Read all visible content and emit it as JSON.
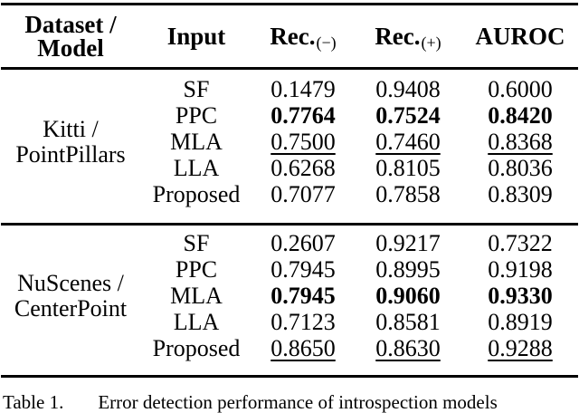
{
  "table": {
    "header": {
      "col1_line1": "Dataset /",
      "col1_line2": "Model",
      "col2": "Input",
      "rec_label": "Rec.",
      "rec_neg_sub": "(−)",
      "rec_pos_sub": "(+)",
      "col5": "AUROC"
    },
    "sections": [
      {
        "group_line1": "Kitti /",
        "group_line2": "PointPillars",
        "rows": [
          {
            "input": "SF",
            "values": [
              "0.1479",
              "0.9408",
              "0.6000"
            ],
            "emphasis": "none"
          },
          {
            "input": "PPC",
            "values": [
              "0.7764",
              "0.7524",
              "0.8420"
            ],
            "emphasis": "bold"
          },
          {
            "input": "MLA",
            "values": [
              "0.7500",
              "0.7460",
              "0.8368"
            ],
            "emphasis": "underline"
          },
          {
            "input": "LLA",
            "values": [
              "0.6268",
              "0.8105",
              "0.8036"
            ],
            "emphasis": "none"
          },
          {
            "input": "Proposed",
            "values": [
              "0.7077",
              "0.7858",
              "0.8309"
            ],
            "emphasis": "none"
          }
        ]
      },
      {
        "group_line1": "NuScenes /",
        "group_line2": "CenterPoint",
        "rows": [
          {
            "input": "SF",
            "values": [
              "0.2607",
              "0.9217",
              "0.7322"
            ],
            "emphasis": "none"
          },
          {
            "input": "PPC",
            "values": [
              "0.7945",
              "0.8995",
              "0.9198"
            ],
            "emphasis": "none"
          },
          {
            "input": "MLA",
            "values": [
              "0.7945",
              "0.9060",
              "0.9330"
            ],
            "emphasis": "bold"
          },
          {
            "input": "LLA",
            "values": [
              "0.7123",
              "0.8581",
              "0.8919"
            ],
            "emphasis": "none"
          },
          {
            "input": "Proposed",
            "values": [
              "0.8650",
              "0.8630",
              "0.9288"
            ],
            "emphasis": "underline"
          }
        ]
      }
    ]
  },
  "caption": {
    "label": "Table 1.",
    "text": "Error detection performance of introspection models"
  },
  "colors": {
    "text": "#000000",
    "background": "#ffffff",
    "rule": "#000000"
  }
}
